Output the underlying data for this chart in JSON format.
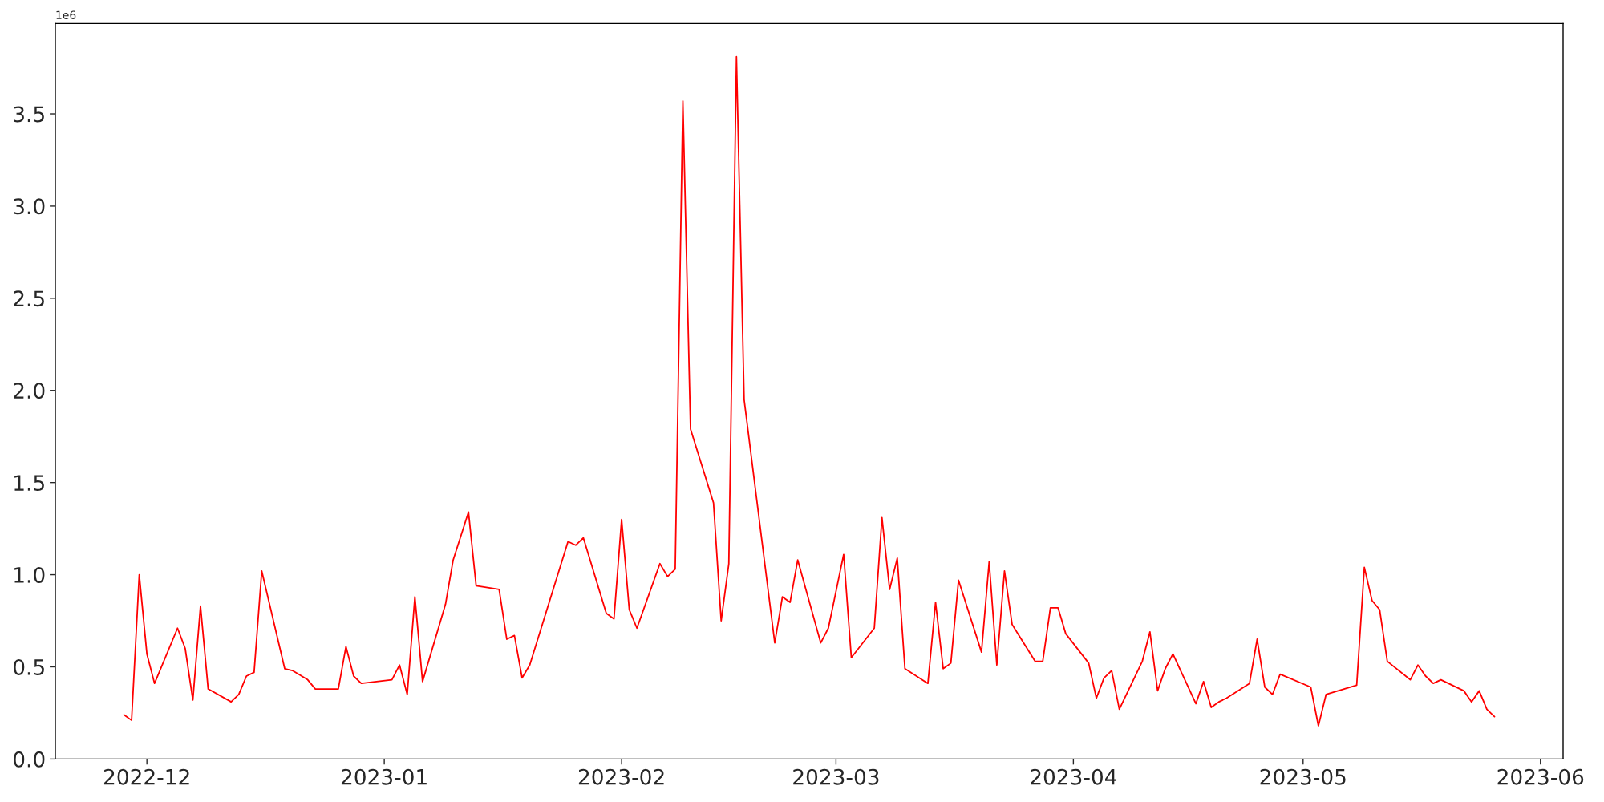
{
  "chart_data": {
    "type": "line",
    "annotations": [
      "1e6"
    ],
    "x": [
      "2022-11-28",
      "2022-11-29",
      "2022-11-30",
      "2022-12-01",
      "2022-12-02",
      "2022-12-05",
      "2022-12-06",
      "2022-12-07",
      "2022-12-08",
      "2022-12-09",
      "2022-12-12",
      "2022-12-13",
      "2022-12-14",
      "2022-12-15",
      "2022-12-16",
      "2022-12-19",
      "2022-12-20",
      "2022-12-22",
      "2022-12-23",
      "2022-12-26",
      "2022-12-27",
      "2022-12-28",
      "2022-12-29",
      "2023-01-02",
      "2023-01-03",
      "2023-01-04",
      "2023-01-05",
      "2023-01-06",
      "2023-01-09",
      "2023-01-10",
      "2023-01-12",
      "2023-01-13",
      "2023-01-16",
      "2023-01-17",
      "2023-01-18",
      "2023-01-19",
      "2023-01-20",
      "2023-01-25",
      "2023-01-26",
      "2023-01-27",
      "2023-01-30",
      "2023-01-31",
      "2023-02-01",
      "2023-02-02",
      "2023-02-03",
      "2023-02-06",
      "2023-02-07",
      "2023-02-08",
      "2023-02-09",
      "2023-02-10",
      "2023-02-13",
      "2023-02-14",
      "2023-02-15",
      "2023-02-16",
      "2023-02-17",
      "2023-02-21",
      "2023-02-22",
      "2023-02-23",
      "2023-02-24",
      "2023-02-27",
      "2023-02-28",
      "2023-03-02",
      "2023-03-03",
      "2023-03-06",
      "2023-03-07",
      "2023-03-08",
      "2023-03-09",
      "2023-03-10",
      "2023-03-13",
      "2023-03-14",
      "2023-03-15",
      "2023-03-16",
      "2023-03-17",
      "2023-03-20",
      "2023-03-21",
      "2023-03-22",
      "2023-03-23",
      "2023-03-24",
      "2023-03-27",
      "2023-03-28",
      "2023-03-29",
      "2023-03-30",
      "2023-03-31",
      "2023-04-03",
      "2023-04-04",
      "2023-04-05",
      "2023-04-06",
      "2023-04-07",
      "2023-04-10",
      "2023-04-11",
      "2023-04-12",
      "2023-04-13",
      "2023-04-14",
      "2023-04-17",
      "2023-04-18",
      "2023-04-19",
      "2023-04-20",
      "2023-04-21",
      "2023-04-24",
      "2023-04-25",
      "2023-04-26",
      "2023-04-27",
      "2023-04-28",
      "2023-05-02",
      "2023-05-03",
      "2023-05-04",
      "2023-05-08",
      "2023-05-09",
      "2023-05-10",
      "2023-05-11",
      "2023-05-12",
      "2023-05-15",
      "2023-05-16",
      "2023-05-17",
      "2023-05-18",
      "2023-05-19",
      "2023-05-22",
      "2023-05-23",
      "2023-05-24",
      "2023-05-25",
      "2023-05-26"
    ],
    "series": [
      {
        "color": "#ff0000",
        "values": [
          0.24,
          0.21,
          1.0,
          0.57,
          0.41,
          0.71,
          0.6,
          0.32,
          0.83,
          0.38,
          0.31,
          0.35,
          0.45,
          0.47,
          1.02,
          0.49,
          0.48,
          0.43,
          0.38,
          0.38,
          0.61,
          0.45,
          0.41,
          0.43,
          0.51,
          0.35,
          0.88,
          0.42,
          0.84,
          1.08,
          1.34,
          0.94,
          0.92,
          0.65,
          0.67,
          0.44,
          0.51,
          1.18,
          1.16,
          1.2,
          0.79,
          0.76,
          1.3,
          0.81,
          0.71,
          1.06,
          0.99,
          1.03,
          3.57,
          1.79,
          1.39,
          0.75,
          1.06,
          3.81,
          1.95,
          0.63,
          0.88,
          0.85,
          1.08,
          0.63,
          0.71,
          1.11,
          0.55,
          0.71,
          1.31,
          0.92,
          1.09,
          0.49,
          0.41,
          0.85,
          0.49,
          0.52,
          0.97,
          0.58,
          1.07,
          0.51,
          1.02,
          0.73,
          0.53,
          0.53,
          0.82,
          0.82,
          0.68,
          0.52,
          0.33,
          0.44,
          0.48,
          0.27,
          0.53,
          0.69,
          0.37,
          0.49,
          0.57,
          0.3,
          0.42,
          0.28,
          0.31,
          0.33,
          0.41,
          0.65,
          0.39,
          0.35,
          0.46,
          0.39,
          0.18,
          0.35,
          0.4,
          1.04,
          0.86,
          0.81,
          0.53,
          0.43,
          0.51,
          0.45,
          0.41,
          0.43,
          0.37,
          0.31,
          0.37,
          0.27,
          0.23
        ]
      }
    ],
    "xlim": [
      "2022-11-19T01:00",
      "2023-06-03T23:00"
    ],
    "xticks": [
      {
        "value": "2022-12-01",
        "label": "2022-12"
      },
      {
        "value": "2023-01-01",
        "label": "2023-01"
      },
      {
        "value": "2023-02-01",
        "label": "2023-02"
      },
      {
        "value": "2023-03-01",
        "label": "2023-03"
      },
      {
        "value": "2023-04-01",
        "label": "2023-04"
      },
      {
        "value": "2023-05-01",
        "label": "2023-05"
      },
      {
        "value": "2023-06-01",
        "label": "2023-06"
      }
    ],
    "ylim": [
      0,
      3.99
    ],
    "yticks": [
      {
        "value": 0,
        "label": "0.0"
      },
      {
        "value": 0.5,
        "label": "0.5"
      },
      {
        "value": 1,
        "label": "1.0"
      },
      {
        "value": 1.5,
        "label": "1.5"
      },
      {
        "value": 2,
        "label": "2.0"
      },
      {
        "value": 2.5,
        "label": "2.5"
      },
      {
        "value": 3,
        "label": "3.0"
      },
      {
        "value": 3.5,
        "label": "3.5"
      }
    ],
    "grid": false,
    "legend": false,
    "marker": "none",
    "line_style": "solid"
  }
}
